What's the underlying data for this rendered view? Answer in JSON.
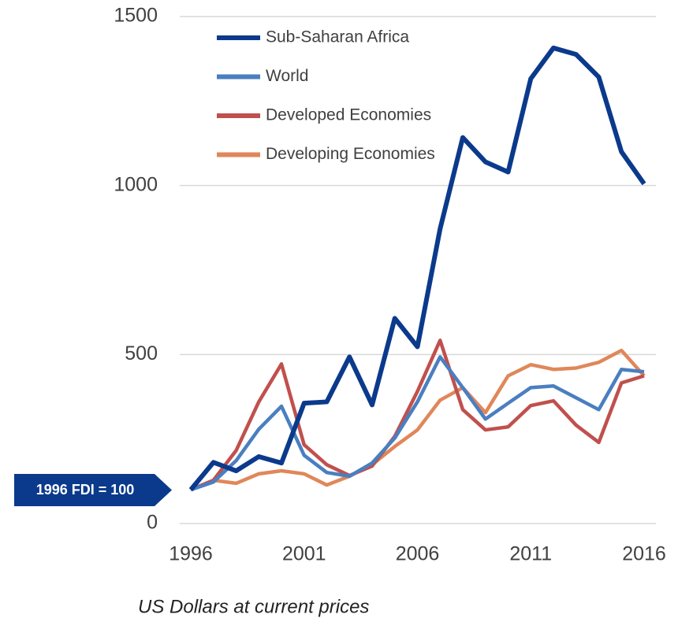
{
  "chart_data": {
    "type": "line",
    "x": [
      1996,
      1997,
      1998,
      1999,
      2000,
      2001,
      2002,
      2003,
      2004,
      2005,
      2006,
      2007,
      2008,
      2009,
      2010,
      2011,
      2012,
      2013,
      2014,
      2015,
      2016
    ],
    "series": [
      {
        "name": "Sub-Saharan Africa",
        "color": "#0b3a8c",
        "values": [
          100,
          181,
          156,
          198,
          179,
          356,
          360,
          493,
          351,
          607,
          523,
          872,
          1142,
          1070,
          1040,
          1316,
          1407,
          1388,
          1321,
          1100,
          1005
        ]
      },
      {
        "name": "World",
        "color": "#4a7fc0",
        "values": [
          100,
          123,
          186,
          279,
          347,
          202,
          151,
          140,
          179,
          253,
          360,
          493,
          402,
          309,
          356,
          402,
          407,
          372,
          337,
          456,
          449
        ]
      },
      {
        "name": "Developed Economies",
        "color": "#c0504d",
        "values": [
          100,
          128,
          216,
          360,
          472,
          233,
          174,
          142,
          170,
          258,
          391,
          542,
          337,
          277,
          286,
          349,
          363,
          291,
          240,
          416,
          437
        ]
      },
      {
        "name": "Developing Economies",
        "color": "#e0875a",
        "values": [
          100,
          128,
          119,
          147,
          156,
          147,
          114,
          140,
          174,
          228,
          277,
          365,
          402,
          328,
          437,
          470,
          456,
          460,
          477,
          512,
          437
        ]
      }
    ],
    "xlim": [
      1996,
      2016
    ],
    "xticks": [
      1996,
      2001,
      2006,
      2011,
      2016
    ],
    "ylim": [
      0,
      1500
    ],
    "yticks": [
      0,
      500,
      1000,
      1500
    ],
    "grid": true,
    "legend": "upper-left",
    "annotation": "1996 FDI = 100",
    "caption": "US Dollars at current prices"
  }
}
